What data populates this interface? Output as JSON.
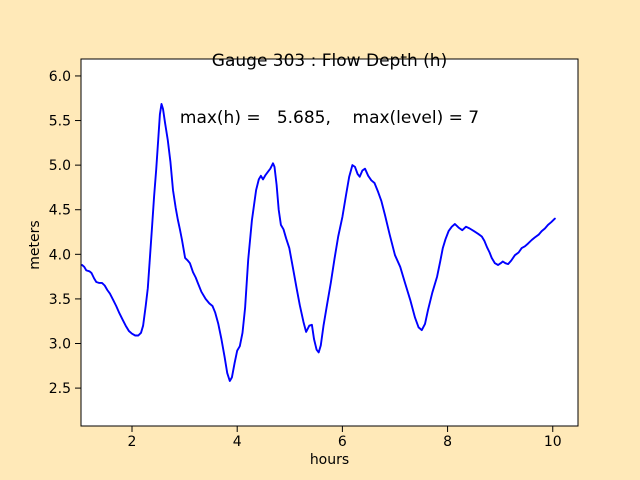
{
  "figure": {
    "background_color": "#ffe9b8",
    "plot_background_color": "#ffffff",
    "axis_color": "#000000",
    "title_line1": "Gauge 303 : Flow Depth (h)",
    "title_line2": "max(h) =   5.685,    max(level) = 7"
  },
  "chart_data": {
    "type": "line",
    "title": "Gauge 303 : Flow Depth (h)",
    "subtitle": "max(h) =   5.685,    max(level) = 7",
    "max_h": 5.685,
    "max_level": 7,
    "xlabel": "hours",
    "ylabel": "meters",
    "xlim": [
      1.03,
      10.48
    ],
    "ylim": [
      2.075,
      6.19
    ],
    "grid": false,
    "legend": null,
    "x_ticks": [
      {
        "value": 2,
        "label": "2"
      },
      {
        "value": 4,
        "label": "4"
      },
      {
        "value": 6,
        "label": "6"
      },
      {
        "value": 8,
        "label": "8"
      },
      {
        "value": 10,
        "label": "10"
      }
    ],
    "y_ticks": [
      {
        "value": 2.5,
        "label": "2.5"
      },
      {
        "value": 3.0,
        "label": "3.0"
      },
      {
        "value": 3.5,
        "label": "3.5"
      },
      {
        "value": 4.0,
        "label": "4.0"
      },
      {
        "value": 4.5,
        "label": "4.5"
      },
      {
        "value": 5.0,
        "label": "5.0"
      },
      {
        "value": 5.5,
        "label": "5.5"
      },
      {
        "value": 6.0,
        "label": "6.0"
      }
    ],
    "series": [
      {
        "name": "h",
        "color": "#0000ff",
        "width": 1.9,
        "points": [
          [
            1.05,
            3.88
          ],
          [
            1.09,
            3.86
          ],
          [
            1.13,
            3.82
          ],
          [
            1.19,
            3.81
          ],
          [
            1.23,
            3.79
          ],
          [
            1.28,
            3.73
          ],
          [
            1.32,
            3.69
          ],
          [
            1.37,
            3.68
          ],
          [
            1.43,
            3.68
          ],
          [
            1.48,
            3.65
          ],
          [
            1.53,
            3.6
          ],
          [
            1.58,
            3.56
          ],
          [
            1.64,
            3.49
          ],
          [
            1.7,
            3.42
          ],
          [
            1.76,
            3.34
          ],
          [
            1.82,
            3.27
          ],
          [
            1.88,
            3.2
          ],
          [
            1.94,
            3.14
          ],
          [
            2.0,
            3.11
          ],
          [
            2.06,
            3.09
          ],
          [
            2.12,
            3.09
          ],
          [
            2.17,
            3.12
          ],
          [
            2.21,
            3.2
          ],
          [
            2.26,
            3.42
          ],
          [
            2.3,
            3.62
          ],
          [
            2.34,
            3.96
          ],
          [
            2.38,
            4.3
          ],
          [
            2.42,
            4.65
          ],
          [
            2.46,
            4.95
          ],
          [
            2.5,
            5.3
          ],
          [
            2.53,
            5.57
          ],
          [
            2.56,
            5.685
          ],
          [
            2.59,
            5.63
          ],
          [
            2.63,
            5.47
          ],
          [
            2.68,
            5.28
          ],
          [
            2.73,
            5.04
          ],
          [
            2.78,
            4.72
          ],
          [
            2.83,
            4.52
          ],
          [
            2.87,
            4.39
          ],
          [
            2.91,
            4.28
          ],
          [
            2.95,
            4.16
          ],
          [
            3.01,
            3.96
          ],
          [
            3.06,
            3.93
          ],
          [
            3.1,
            3.9
          ],
          [
            3.16,
            3.8
          ],
          [
            3.21,
            3.74
          ],
          [
            3.25,
            3.68
          ],
          [
            3.32,
            3.58
          ],
          [
            3.4,
            3.5
          ],
          [
            3.47,
            3.45
          ],
          [
            3.53,
            3.42
          ],
          [
            3.58,
            3.35
          ],
          [
            3.64,
            3.22
          ],
          [
            3.7,
            3.05
          ],
          [
            3.76,
            2.85
          ],
          [
            3.81,
            2.67
          ],
          [
            3.86,
            2.58
          ],
          [
            3.9,
            2.62
          ],
          [
            3.95,
            2.78
          ],
          [
            4.0,
            2.92
          ],
          [
            4.05,
            2.97
          ],
          [
            4.1,
            3.12
          ],
          [
            4.15,
            3.4
          ],
          [
            4.21,
            3.94
          ],
          [
            4.28,
            4.38
          ],
          [
            4.36,
            4.72
          ],
          [
            4.41,
            4.84
          ],
          [
            4.45,
            4.88
          ],
          [
            4.49,
            4.84
          ],
          [
            4.54,
            4.89
          ],
          [
            4.59,
            4.93
          ],
          [
            4.63,
            4.96
          ],
          [
            4.68,
            5.02
          ],
          [
            4.71,
            4.98
          ],
          [
            4.75,
            4.78
          ],
          [
            4.79,
            4.5
          ],
          [
            4.83,
            4.33
          ],
          [
            4.88,
            4.28
          ],
          [
            4.93,
            4.18
          ],
          [
            4.99,
            4.07
          ],
          [
            5.06,
            3.85
          ],
          [
            5.13,
            3.62
          ],
          [
            5.19,
            3.43
          ],
          [
            5.26,
            3.24
          ],
          [
            5.31,
            3.13
          ],
          [
            5.37,
            3.2
          ],
          [
            5.42,
            3.21
          ],
          [
            5.46,
            3.05
          ],
          [
            5.51,
            2.93
          ],
          [
            5.55,
            2.9
          ],
          [
            5.59,
            2.98
          ],
          [
            5.64,
            3.2
          ],
          [
            5.71,
            3.44
          ],
          [
            5.78,
            3.68
          ],
          [
            5.85,
            3.95
          ],
          [
            5.92,
            4.2
          ],
          [
            6.0,
            4.42
          ],
          [
            6.07,
            4.67
          ],
          [
            6.13,
            4.87
          ],
          [
            6.19,
            5.0
          ],
          [
            6.24,
            4.98
          ],
          [
            6.29,
            4.9
          ],
          [
            6.33,
            4.87
          ],
          [
            6.38,
            4.94
          ],
          [
            6.43,
            4.96
          ],
          [
            6.49,
            4.88
          ],
          [
            6.55,
            4.83
          ],
          [
            6.61,
            4.8
          ],
          [
            6.68,
            4.7
          ],
          [
            6.74,
            4.6
          ],
          [
            6.81,
            4.44
          ],
          [
            6.9,
            4.22
          ],
          [
            7.0,
            3.99
          ],
          [
            7.1,
            3.86
          ],
          [
            7.19,
            3.68
          ],
          [
            7.29,
            3.49
          ],
          [
            7.38,
            3.29
          ],
          [
            7.45,
            3.18
          ],
          [
            7.51,
            3.15
          ],
          [
            7.57,
            3.22
          ],
          [
            7.63,
            3.38
          ],
          [
            7.71,
            3.57
          ],
          [
            7.8,
            3.75
          ],
          [
            7.86,
            3.92
          ],
          [
            7.91,
            4.07
          ],
          [
            7.96,
            4.17
          ],
          [
            8.02,
            4.26
          ],
          [
            8.08,
            4.31
          ],
          [
            8.14,
            4.34
          ],
          [
            8.21,
            4.3
          ],
          [
            8.28,
            4.27
          ],
          [
            8.35,
            4.31
          ],
          [
            8.42,
            4.29
          ],
          [
            8.5,
            4.26
          ],
          [
            8.58,
            4.23
          ],
          [
            8.65,
            4.2
          ],
          [
            8.7,
            4.15
          ],
          [
            8.75,
            4.08
          ],
          [
            8.8,
            4.02
          ],
          [
            8.84,
            3.96
          ],
          [
            8.9,
            3.9
          ],
          [
            8.96,
            3.88
          ],
          [
            9.01,
            3.9
          ],
          [
            9.05,
            3.92
          ],
          [
            9.1,
            3.9
          ],
          [
            9.15,
            3.89
          ],
          [
            9.21,
            3.93
          ],
          [
            9.28,
            3.99
          ],
          [
            9.35,
            4.02
          ],
          [
            9.41,
            4.07
          ],
          [
            9.47,
            4.09
          ],
          [
            9.53,
            4.12
          ],
          [
            9.6,
            4.16
          ],
          [
            9.66,
            4.19
          ],
          [
            9.73,
            4.22
          ],
          [
            9.79,
            4.26
          ],
          [
            9.85,
            4.29
          ],
          [
            9.91,
            4.33
          ],
          [
            9.97,
            4.36
          ],
          [
            10.04,
            4.4
          ]
        ]
      }
    ]
  }
}
